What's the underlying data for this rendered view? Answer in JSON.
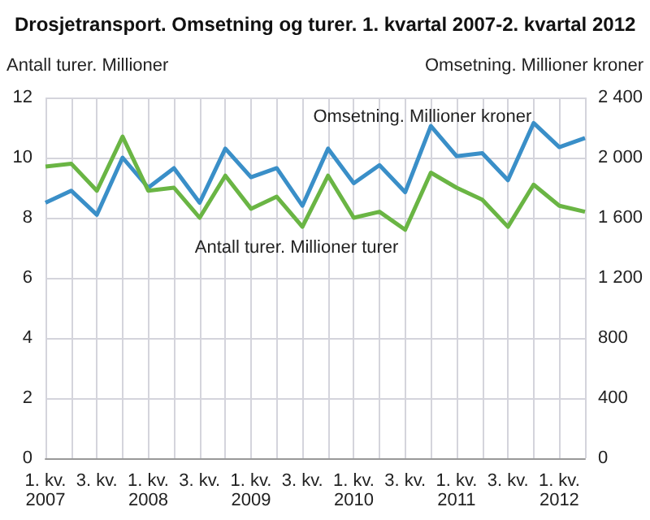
{
  "chart_data": {
    "type": "line",
    "title": "Drosjetransport. Omsetning og turer. 1. kvartal 2007-2. kvartal 2012",
    "ylabel": "Antall turer. Millioner",
    "y2label": "Omsetning. Millioner kroner",
    "categories": [
      "1. kv.\n2007",
      null,
      "3. kv.",
      null,
      "1. kv.\n2008",
      null,
      "3. kv.",
      null,
      "1. kv.\n2009",
      null,
      "3. kv.",
      null,
      "1. kv.\n2010",
      null,
      "3. kv.",
      null,
      "1. kv.\n2011",
      null,
      "3. kv.",
      null,
      "1. kv.\n2012",
      null
    ],
    "series": [
      {
        "name": "Omsetning. Millioner kroner",
        "color": "#3a8fc8",
        "axis": "y2",
        "values": [
          1700,
          1780,
          1620,
          2000,
          1800,
          1930,
          1700,
          2060,
          1870,
          1930,
          1680,
          2060,
          1830,
          1950,
          1770,
          2210,
          2010,
          2030,
          1850,
          2230,
          2070,
          2130
        ]
      },
      {
        "name": "Antall turer. Millioner turer",
        "color": "#6ab544",
        "axis": "y",
        "values": [
          9.7,
          9.8,
          8.9,
          10.7,
          8.9,
          9.0,
          8.0,
          9.4,
          8.3,
          8.7,
          7.7,
          9.4,
          8.0,
          8.2,
          7.6,
          9.5,
          9.0,
          8.6,
          7.7,
          9.1,
          8.4,
          8.2
        ]
      }
    ],
    "ylim": [
      0,
      12
    ],
    "yticks": [
      0,
      2,
      4,
      6,
      8,
      10,
      12
    ],
    "y2lim": [
      0,
      2400
    ],
    "y2ticks": [
      0,
      {
        "value": 400,
        "label": "400"
      },
      {
        "value": 800,
        "label": "800"
      },
      {
        "value": 1200,
        "label": "1 200"
      },
      {
        "value": 1600,
        "label": "1 600"
      },
      {
        "value": 2000,
        "label": "2 000"
      },
      {
        "value": 2400,
        "label": "2 400"
      }
    ],
    "grid": true,
    "legend": false,
    "marker": "none",
    "line_style": "solid"
  }
}
